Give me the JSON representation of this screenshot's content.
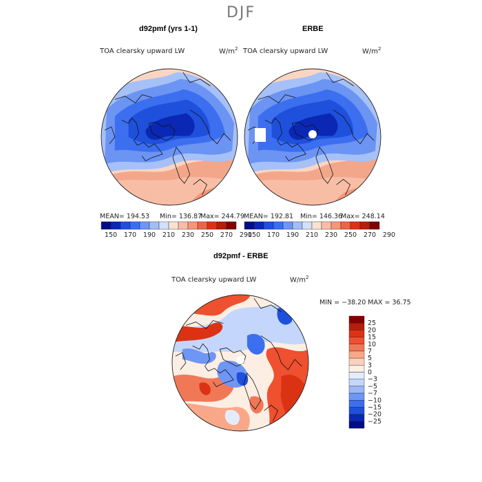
{
  "figure": {
    "season": "DJF"
  },
  "panels": [
    {
      "title": "d92pmf (yrs 1-1)",
      "variable": "TOA clearsky upward LW",
      "units": "W/m",
      "units_exp": "2",
      "stats": {
        "mean": "MEAN= 194.53",
        "min": "Min= 136.87",
        "max": "Max= 244.79"
      }
    },
    {
      "title": "ERBE",
      "variable": "TOA clearsky upward LW",
      "units": "W/m",
      "units_exp": "2",
      "stats": {
        "mean": "MEAN= 192.81",
        "min": "Min= 146.36",
        "max": "Max= 248.14"
      }
    },
    {
      "title": "d92pmf - ERBE",
      "variable": "TOA clearsky upward LW",
      "units": "W/m",
      "units_exp": "2",
      "minmax": "MIN = −38.20 MAX =  36.75"
    }
  ],
  "colorbar_abs": {
    "ticks": [
      "150",
      "170",
      "190",
      "210",
      "230",
      "250",
      "270",
      "290"
    ],
    "colors": [
      "#000c8a",
      "#0a28b4",
      "#1e50dc",
      "#3c6ef0",
      "#6e96f5",
      "#a0bef8",
      "#d2e0fa",
      "#fbe0d2",
      "#f8bea5",
      "#f59678",
      "#ee6446",
      "#dc3214",
      "#b41e0a",
      "#820000"
    ]
  },
  "colorbar_diff": {
    "labels": [
      "25",
      "20",
      "15",
      "10",
      "7",
      "5",
      "3",
      "0",
      "−3",
      "−5",
      "−7",
      "−10",
      "−15",
      "−20",
      "−25"
    ],
    "colors": [
      "#820000",
      "#b41e0a",
      "#dc3214",
      "#ee5030",
      "#f07856",
      "#f8a888",
      "#fbd0bc",
      "#fdeee4",
      "#e4ecfc",
      "#c4d6fb",
      "#9ab8f6",
      "#6e96f5",
      "#3c6ef0",
      "#1e50dc",
      "#0a28b4",
      "#000c8a"
    ]
  }
}
